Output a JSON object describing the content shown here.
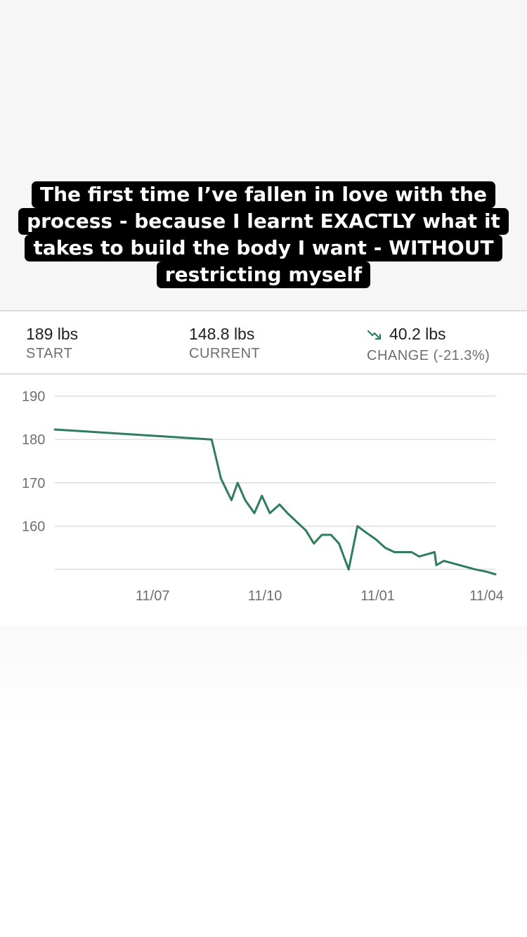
{
  "caption": {
    "lines": [
      "The first time I’ve fallen in love with the",
      "process - because I learnt EXACTLY what it",
      "takes to build the body I want - WITHOUT",
      "restricting myself"
    ]
  },
  "stats": {
    "start": {
      "value": "189 lbs",
      "label": "START"
    },
    "current": {
      "value": "148.8 lbs",
      "label": "CURRENT"
    },
    "change": {
      "value": "40.2 lbs",
      "label": "CHANGE (-21.3%)",
      "icon": "trend-down-icon"
    }
  },
  "colors": {
    "line": "#2e7d5b",
    "grid": "#d6d6d6",
    "tick": "#6e6e6e"
  },
  "chart_data": {
    "type": "line",
    "xlabel": "",
    "ylabel": "",
    "y_ticks": [
      190,
      180,
      170,
      160
    ],
    "ylim": [
      148.9,
      193
    ],
    "x_tick_labels": [
      "11/07",
      "11/10",
      "11/01",
      "11/04"
    ],
    "x_tick_positions": [
      0.222,
      0.477,
      0.733,
      0.98
    ],
    "grid": true,
    "series": [
      {
        "points": [
          [
            0,
            182.3
          ],
          [
            0.356,
            180
          ],
          [
            0.377,
            171
          ],
          [
            0.401,
            166
          ],
          [
            0.415,
            170
          ],
          [
            0.432,
            166
          ],
          [
            0.453,
            163
          ],
          [
            0.47,
            167
          ],
          [
            0.488,
            163
          ],
          [
            0.51,
            165
          ],
          [
            0.528,
            163
          ],
          [
            0.549,
            161
          ],
          [
            0.57,
            159
          ],
          [
            0.588,
            156
          ],
          [
            0.606,
            158
          ],
          [
            0.627,
            158
          ],
          [
            0.645,
            156
          ],
          [
            0.667,
            150
          ],
          [
            0.687,
            160
          ],
          [
            0.707,
            158.5
          ],
          [
            0.728,
            157
          ],
          [
            0.75,
            155
          ],
          [
            0.771,
            154
          ],
          [
            0.81,
            154
          ],
          [
            0.827,
            153
          ],
          [
            0.862,
            154
          ],
          [
            0.866,
            151
          ],
          [
            0.883,
            152
          ],
          [
            0.955,
            150
          ],
          [
            0.98,
            149.5
          ],
          [
            1,
            148.9
          ]
        ]
      }
    ]
  }
}
